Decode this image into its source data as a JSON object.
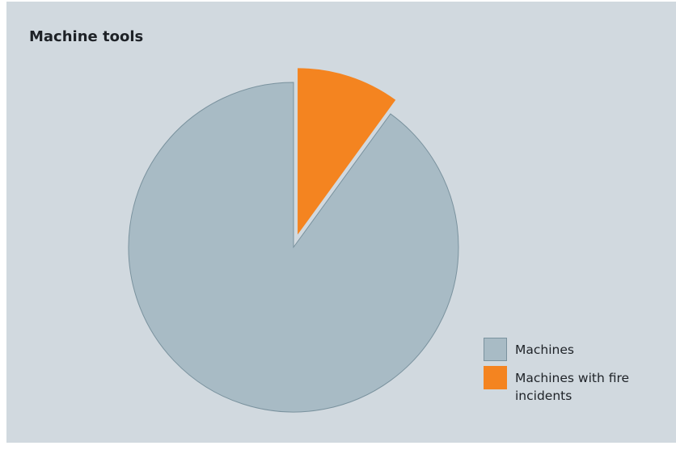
{
  "chart_data": {
    "type": "pie",
    "title": "Machine tools",
    "slices": [
      {
        "label": "Machines with fire incidents",
        "value": 10,
        "exploded": true,
        "color": "#f48420",
        "stroke": "#f48420"
      },
      {
        "label": "Machines",
        "value": 90,
        "exploded": false,
        "color": "#a8bbc5",
        "stroke": "#7a929e"
      }
    ],
    "legend_position": "bottom-right"
  },
  "legend": [
    {
      "label": "Machines",
      "color": "#a8bbc5",
      "border": "#7a929e"
    },
    {
      "label": "Machines with fire incidents",
      "color": "#f48420",
      "border": "#f48420"
    }
  ]
}
